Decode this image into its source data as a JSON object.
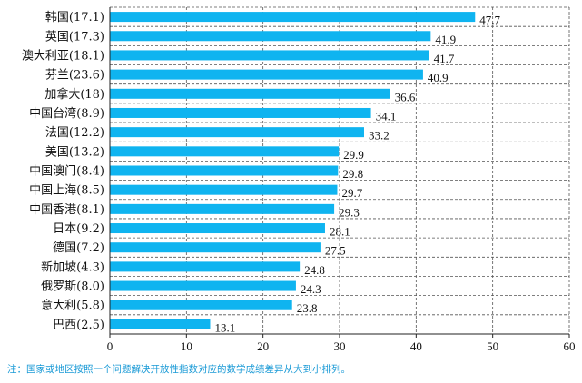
{
  "chart_data": {
    "type": "bar",
    "orientation": "horizontal",
    "categories": [
      "韩国(17.1)",
      "英国(17.3)",
      "澳大利亚(18.1)",
      "芬兰(23.6)",
      "加拿大(18)",
      "中国台湾(8.9)",
      "法国(12.2)",
      "美国(13.2)",
      "中国澳门(8.4)",
      "中国上海(8.5)",
      "中国香港(8.1)",
      "日本(9.2)",
      "德国(7.2)",
      "新加坡(4.3)",
      "俄罗斯(8.0)",
      "意大利(5.8)",
      "巴西(2.5)"
    ],
    "values": [
      47.7,
      41.9,
      41.7,
      40.9,
      36.6,
      34.1,
      33.2,
      29.9,
      29.8,
      29.7,
      29.3,
      28.1,
      27.5,
      24.8,
      24.3,
      23.8,
      13.1
    ],
    "value_labels": [
      "47.7",
      "41.9",
      "41.7",
      "40.9",
      "36.6",
      "34.1",
      "33.2",
      "29.9",
      "29.8",
      "29.7",
      "29.3",
      "28.1",
      "27.5",
      "24.8",
      "24.3",
      "23.8",
      "13.1"
    ],
    "xlim": [
      0,
      60
    ],
    "xticks": [
      0,
      10,
      20,
      30,
      40,
      50,
      60
    ],
    "xtick_labels": [
      "0",
      "10",
      "20",
      "30",
      "40",
      "50",
      "60"
    ],
    "bar_color": "#0fb4f0",
    "grid": "dashed vertical and horizontal",
    "legend": "none"
  },
  "note": "注：国家或地区按照一个问题解决开放性指数对应的数学成绩差异从大到小排列。"
}
